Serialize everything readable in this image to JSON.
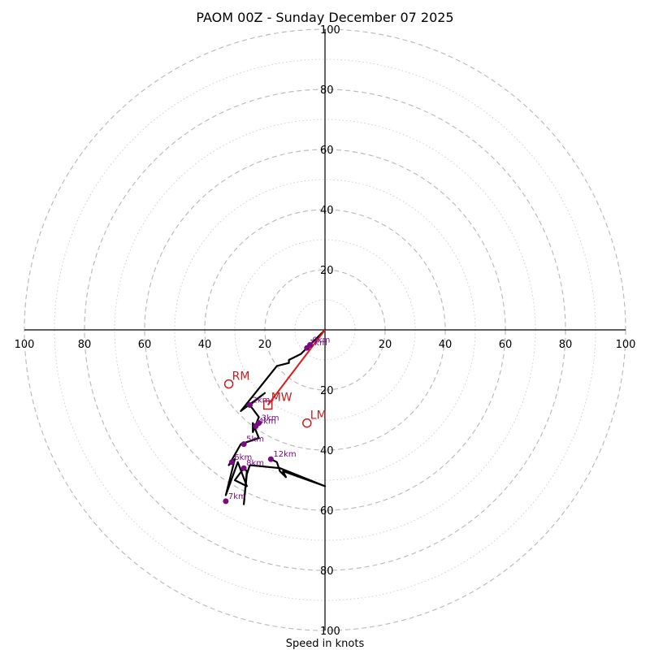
{
  "chart_data": {
    "type": "hodograph",
    "title": "PAOM 00Z - Sunday December 07 2025",
    "xlabel": "Speed in knots",
    "xlim": [
      -100,
      100
    ],
    "ylim": [
      -100,
      100
    ],
    "major_rings": [
      20,
      40,
      60,
      80,
      100
    ],
    "minor_rings": [
      10,
      30,
      50,
      70,
      90
    ],
    "x_tick_labels": [
      "100",
      "80",
      "60",
      "40",
      "20",
      "20",
      "40",
      "60",
      "80",
      "100"
    ],
    "y_tick_labels": [
      "100",
      "80",
      "60",
      "40",
      "20",
      "20",
      "40",
      "60",
      "80",
      "100"
    ],
    "colors": {
      "hodograph": "#000000",
      "heights": "#7b0b82",
      "storm": "#c81e1e",
      "mean_wind": "#e01b1b"
    },
    "hodograph": [
      [
        0,
        0
      ],
      [
        -5,
        -5
      ],
      [
        -7,
        -7
      ],
      [
        -8,
        -8
      ],
      [
        -12,
        -10
      ],
      [
        -12,
        -11
      ],
      [
        -16,
        -12
      ],
      [
        -28,
        -27
      ],
      [
        -20,
        -21
      ],
      [
        -25,
        -25
      ],
      [
        -22,
        -29
      ],
      [
        -24,
        -34
      ],
      [
        -24,
        -31
      ],
      [
        -22,
        -36
      ],
      [
        -28,
        -38
      ],
      [
        -32,
        -45
      ],
      [
        -30,
        -43
      ],
      [
        -33,
        -55
      ],
      [
        -29,
        -44
      ],
      [
        -26,
        -52
      ],
      [
        -30,
        -50
      ],
      [
        -27,
        -46
      ],
      [
        -26,
        -47
      ],
      [
        -27,
        -58
      ],
      [
        -26,
        -48
      ],
      [
        -25,
        -45
      ],
      [
        -15,
        -46
      ],
      [
        0,
        -52
      ],
      [
        -14,
        -47
      ],
      [
        -13,
        -49
      ],
      [
        -15,
        -47
      ],
      [
        -16,
        -44
      ],
      [
        -18,
        -43
      ]
    ],
    "height_markers": [
      {
        "label": "0km",
        "u": -5,
        "v": -5
      },
      {
        "label": "1km",
        "u": -6,
        "v": -6
      },
      {
        "label": "2km",
        "u": -25,
        "v": -25
      },
      {
        "label": "3km",
        "u": -22,
        "v": -31
      },
      {
        "label": "4km",
        "u": -23,
        "v": -32
      },
      {
        "label": "5km",
        "u": -27,
        "v": -38
      },
      {
        "label": "6km",
        "u": -31,
        "v": -44
      },
      {
        "label": "7km",
        "u": -33,
        "v": -57
      },
      {
        "label": "8km",
        "u": -27,
        "v": -46
      },
      {
        "label": "12km",
        "u": -18,
        "v": -43
      }
    ],
    "storm_motion": [
      {
        "label": "RM",
        "u": -32,
        "v": -18,
        "marker": "circle"
      },
      {
        "label": "LM",
        "u": -6,
        "v": -31,
        "marker": "circle"
      },
      {
        "label": "MW",
        "u": -19,
        "v": -25,
        "marker": "square"
      }
    ]
  }
}
